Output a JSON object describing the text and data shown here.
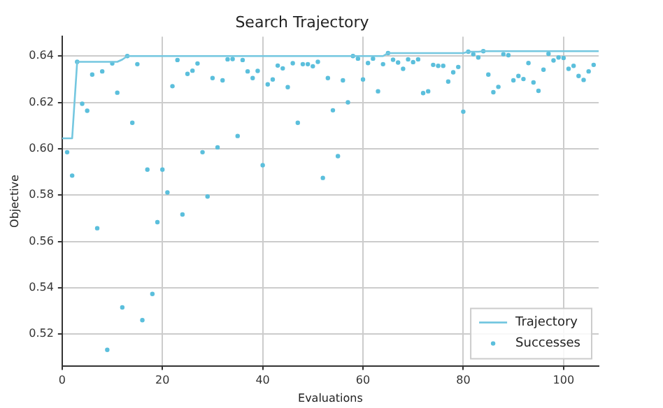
{
  "chart_data": {
    "type": "scatter",
    "title": "Search Trajectory",
    "xlabel": "Evaluations",
    "ylabel": "Objective",
    "xlim": [
      0,
      107
    ],
    "ylim": [
      0.5063,
      0.6484
    ],
    "xticks": [
      0,
      20,
      40,
      60,
      80,
      100
    ],
    "yticks": [
      0.52,
      0.54,
      0.56,
      0.58,
      {
        "value": 0.6,
        "label": "0.60"
      },
      0.62,
      0.64
    ],
    "grid": true,
    "legend": "bottom right",
    "series": [
      {
        "name": "Trajectory",
        "type": "line",
        "color": "#74c7e0",
        "marker": "none",
        "line_style": "solid",
        "x": [
          0,
          2,
          3,
          11,
          12,
          13,
          64,
          65,
          80,
          81,
          83,
          84,
          107
        ],
        "values": [
          0.6045,
          0.6045,
          0.6375,
          0.6375,
          0.6385,
          0.64,
          0.64,
          0.6413,
          0.6413,
          0.6419,
          0.6419,
          0.6421,
          0.6421
        ]
      },
      {
        "name": "Successes",
        "type": "scatter",
        "color": "#5bbfdc",
        "marker": "circle",
        "x": [
          1,
          2,
          3,
          4,
          5,
          6,
          7,
          8,
          9,
          10,
          11,
          12,
          13,
          14,
          15,
          16,
          17,
          18,
          19,
          20,
          21,
          22,
          23,
          24,
          25,
          26,
          27,
          28,
          29,
          30,
          31,
          32,
          33,
          34,
          35,
          36,
          37,
          38,
          39,
          40,
          41,
          42,
          43,
          44,
          45,
          46,
          47,
          48,
          49,
          50,
          51,
          52,
          53,
          54,
          55,
          56,
          57,
          58,
          59,
          60,
          61,
          62,
          63,
          64,
          65,
          66,
          67,
          68,
          69,
          70,
          71,
          72,
          73,
          74,
          75,
          76,
          77,
          78,
          79,
          80,
          81,
          82,
          83,
          84,
          85,
          86,
          87,
          88,
          89,
          90,
          91,
          92,
          93,
          94,
          95,
          96,
          97,
          98,
          99,
          100,
          101,
          102,
          103,
          104,
          105,
          106
        ],
        "values": [
          0.5985,
          0.5884,
          0.6375,
          0.6194,
          0.6164,
          0.632,
          0.5657,
          0.6334,
          0.5132,
          0.6368,
          0.6242,
          0.5315,
          0.64,
          0.6112,
          0.6365,
          0.526,
          0.591,
          0.5373,
          0.5683,
          0.591,
          0.5811,
          0.627,
          0.6383,
          0.5716,
          0.6323,
          0.6337,
          0.6368,
          0.5985,
          0.5794,
          0.6305,
          0.6006,
          0.6295,
          0.6386,
          0.6387,
          0.6055,
          0.6383,
          0.6334,
          0.6305,
          0.6336,
          0.5929,
          0.6278,
          0.6299,
          0.6359,
          0.6347,
          0.6266,
          0.6369,
          0.6112,
          0.6365,
          0.6365,
          0.6356,
          0.6375,
          0.5874,
          0.6305,
          0.6166,
          0.5968,
          0.6295,
          0.62,
          0.64,
          0.6389,
          0.6299,
          0.637,
          0.6389,
          0.6248,
          0.6365,
          0.6413,
          0.6384,
          0.6372,
          0.6345,
          0.6386,
          0.6374,
          0.6386,
          0.624,
          0.6248,
          0.6362,
          0.6358,
          0.6358,
          0.629,
          0.633,
          0.6353,
          0.616,
          0.6419,
          0.6408,
          0.6394,
          0.6421,
          0.632,
          0.6244,
          0.6267,
          0.6408,
          0.6404,
          0.6295,
          0.6314,
          0.6301,
          0.637,
          0.6286,
          0.625,
          0.6341,
          0.641,
          0.6381,
          0.6394,
          0.6392,
          0.6345,
          0.6358,
          0.6314,
          0.6297,
          0.6334,
          0.6362
        ]
      }
    ]
  }
}
